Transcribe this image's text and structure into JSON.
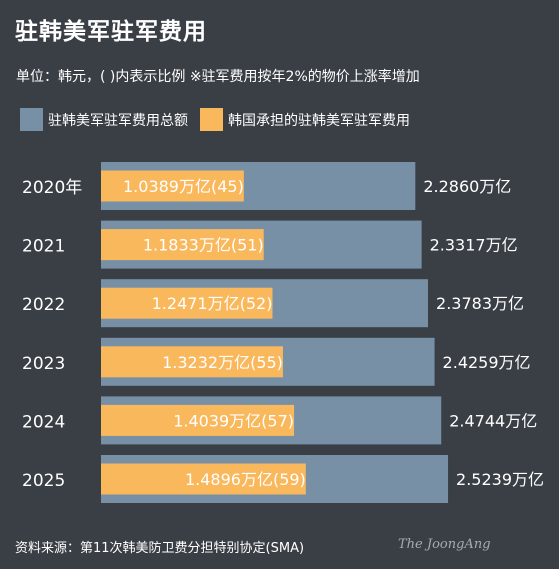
{
  "title": "驻韩美军驻军费用",
  "subtitle": "单位：韩元，( )内表示比例 ※驻军费用按年2%的物价上涨率增加",
  "legend": {
    "total_label": "驻韩美军驻军费用总额",
    "korea_label": "韩国承担的驻韩美军驻军费用"
  },
  "colors": {
    "background": "#3a3f46",
    "total_bar": "#7890a6",
    "korea_bar": "#f9b85c",
    "korea_text": "#ffffff"
  },
  "source": "资料来源：第11次韩美防卫费分担特别协定(SMA)",
  "watermark": "The JoongAng",
  "chart_data": {
    "type": "bar",
    "orientation": "horizontal",
    "categories": [
      "2020年",
      "2021",
      "2022",
      "2023",
      "2024",
      "2025"
    ],
    "series": [
      {
        "name": "驻韩美军驻军费用总额",
        "values": [
          2.286,
          2.3317,
          2.3783,
          2.4259,
          2.4744,
          2.5239
        ],
        "labels": [
          "2.2860万亿",
          "2.3317万亿",
          "2.3783万亿",
          "2.4259万亿",
          "2.4744万亿",
          "2.5239万亿"
        ]
      },
      {
        "name": "韩国承担的驻韩美军驻军费用",
        "values": [
          1.0389,
          1.1833,
          1.2471,
          1.3232,
          1.4039,
          1.4896
        ],
        "labels": [
          "1.0389万亿(45)",
          "1.1833万亿(51)",
          "1.2471万亿(52)",
          "1.3232万亿(55)",
          "1.4039万亿(57)",
          "1.4896万亿(59)"
        ]
      }
    ]
  }
}
